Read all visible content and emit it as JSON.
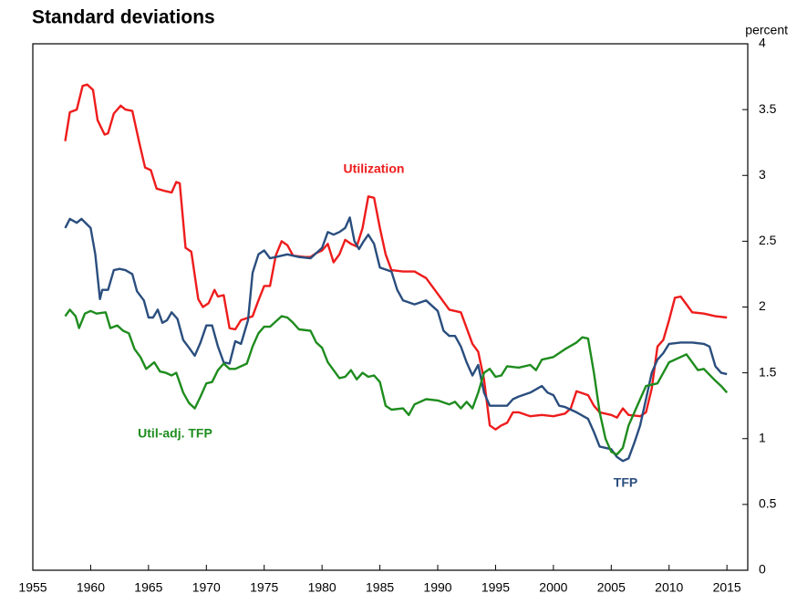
{
  "chart_data": {
    "type": "line",
    "title": "Standard deviations",
    "y_label": "percent",
    "xlim": [
      1955,
      2016.8
    ],
    "xticks": [
      1955,
      1960,
      1965,
      1970,
      1975,
      1980,
      1985,
      1990,
      1995,
      2000,
      2005,
      2010,
      2015
    ],
    "ylim": [
      0,
      4
    ],
    "yticks": [
      0,
      0.5,
      1,
      1.5,
      2,
      2.5,
      3,
      3.5,
      4
    ],
    "y_axis_side": "right",
    "series": [
      {
        "name": "Utilization",
        "color": "#ee1c1c",
        "x": [
          1957.8,
          1958.2,
          1958.8,
          1959.3,
          1959.7,
          1960.2,
          1960.6,
          1961.2,
          1961.5,
          1962,
          1962.6,
          1963,
          1963.6,
          1964.2,
          1964.7,
          1965.2,
          1965.7,
          1966.5,
          1967,
          1967.4,
          1967.7,
          1968.2,
          1968.7,
          1969.3,
          1969.7,
          1970.2,
          1970.7,
          1971,
          1971.5,
          1972,
          1972.5,
          1973,
          1974,
          1974.5,
          1975,
          1975.5,
          1976,
          1976.5,
          1977,
          1977.5,
          1978.5,
          1979,
          1979.5,
          1980,
          1980.5,
          1981,
          1981.5,
          1982,
          1982.5,
          1983,
          1983.5,
          1984,
          1984.5,
          1985,
          1985.5,
          1986,
          1987,
          1988,
          1989,
          1990,
          1991,
          1992,
          1993,
          1993.5,
          1994,
          1994.5,
          1995,
          1995.5,
          1996,
          1996.5,
          1997,
          1998,
          1999,
          2000,
          2001,
          2001.5,
          2002,
          2003,
          2003.5,
          2004,
          2005,
          2005.5,
          2006,
          2006.5,
          2007.5,
          2008,
          2008.5,
          2009,
          2009.5,
          2010,
          2010.5,
          2011,
          2011.5,
          2012,
          2013,
          2014,
          2015
        ],
        "values": [
          3.26,
          3.48,
          3.5,
          3.68,
          3.69,
          3.65,
          3.42,
          3.31,
          3.32,
          3.47,
          3.53,
          3.5,
          3.49,
          3.25,
          3.06,
          3.04,
          2.9,
          2.88,
          2.87,
          2.95,
          2.94,
          2.45,
          2.42,
          2.06,
          2.0,
          2.03,
          2.13,
          2.08,
          2.09,
          1.84,
          1.83,
          1.9,
          1.93,
          2.05,
          2.16,
          2.16,
          2.39,
          2.5,
          2.47,
          2.39,
          2.38,
          2.38,
          2.41,
          2.43,
          2.48,
          2.34,
          2.4,
          2.51,
          2.48,
          2.46,
          2.6,
          2.84,
          2.83,
          2.6,
          2.4,
          2.28,
          2.27,
          2.27,
          2.22,
          2.1,
          1.98,
          1.96,
          1.72,
          1.66,
          1.45,
          1.1,
          1.07,
          1.1,
          1.12,
          1.2,
          1.2,
          1.17,
          1.18,
          1.17,
          1.19,
          1.23,
          1.36,
          1.33,
          1.25,
          1.2,
          1.18,
          1.16,
          1.23,
          1.18,
          1.17,
          1.2,
          1.38,
          1.7,
          1.75,
          1.9,
          2.07,
          2.08,
          2.02,
          1.96,
          1.95,
          1.93,
          1.92
        ]
      },
      {
        "name": "TFP",
        "color": "#2a4e7e",
        "x": [
          1957.8,
          1958.2,
          1958.8,
          1959.2,
          1960,
          1960.4,
          1960.8,
          1961,
          1961.5,
          1962,
          1962.5,
          1963,
          1963.6,
          1964,
          1964.6,
          1965,
          1965.4,
          1965.8,
          1966.2,
          1966.6,
          1967,
          1967.5,
          1968,
          1968.5,
          1969,
          1969.5,
          1970,
          1970.5,
          1971,
          1971.5,
          1972,
          1972.5,
          1973,
          1973.6,
          1974,
          1974.5,
          1975,
          1975.5,
          1976,
          1977,
          1978,
          1979,
          1980,
          1980.5,
          1981,
          1981.5,
          1982,
          1982.4,
          1982.8,
          1983.2,
          1983.6,
          1984,
          1984.5,
          1985,
          1986,
          1986.5,
          1987,
          1988,
          1989,
          1990,
          1990.5,
          1991,
          1991.5,
          1992,
          1992.5,
          1993,
          1993.5,
          1994,
          1994.5,
          1996,
          1996.5,
          1997,
          1998,
          1999,
          1999.5,
          2000,
          2000.5,
          2001,
          2002,
          2003,
          2003.5,
          2004,
          2005,
          2005.5,
          2006,
          2006.5,
          2007,
          2007.5,
          2008,
          2008.5,
          2009,
          2009.5,
          2010,
          2011,
          2012,
          2013,
          2013.5,
          2014,
          2014.5,
          2015
        ],
        "values": [
          2.6,
          2.67,
          2.64,
          2.67,
          2.6,
          2.4,
          2.06,
          2.13,
          2.13,
          2.28,
          2.29,
          2.28,
          2.25,
          2.12,
          2.05,
          1.92,
          1.92,
          1.98,
          1.88,
          1.9,
          1.96,
          1.91,
          1.75,
          1.69,
          1.63,
          1.73,
          1.86,
          1.86,
          1.7,
          1.58,
          1.57,
          1.74,
          1.72,
          1.9,
          2.26,
          2.4,
          2.43,
          2.37,
          2.38,
          2.4,
          2.38,
          2.37,
          2.45,
          2.57,
          2.55,
          2.57,
          2.6,
          2.68,
          2.5,
          2.44,
          2.5,
          2.55,
          2.48,
          2.3,
          2.27,
          2.13,
          2.05,
          2.02,
          2.05,
          1.97,
          1.82,
          1.78,
          1.78,
          1.7,
          1.58,
          1.48,
          1.56,
          1.35,
          1.25,
          1.25,
          1.3,
          1.32,
          1.35,
          1.4,
          1.35,
          1.33,
          1.25,
          1.24,
          1.2,
          1.15,
          1.05,
          0.94,
          0.92,
          0.86,
          0.83,
          0.85,
          0.97,
          1.1,
          1.3,
          1.5,
          1.6,
          1.65,
          1.72,
          1.73,
          1.73,
          1.72,
          1.7,
          1.55,
          1.5,
          1.49
        ]
      },
      {
        "name": "Util-adj. TFP",
        "color": "#1e8c1e",
        "x": [
          1957.8,
          1958.2,
          1958.7,
          1959,
          1959.5,
          1960,
          1960.5,
          1961.3,
          1961.7,
          1962.3,
          1962.8,
          1963.3,
          1963.8,
          1964.3,
          1964.8,
          1965.5,
          1966,
          1966.5,
          1967,
          1967.4,
          1968,
          1968.5,
          1969,
          1969.5,
          1970,
          1970.5,
          1971,
          1971.5,
          1972,
          1972.5,
          1973.5,
          1974,
          1974.5,
          1975,
          1975.5,
          1976,
          1976.5,
          1977,
          1977.5,
          1978,
          1979,
          1979.5,
          1980,
          1980.5,
          1981,
          1981.5,
          1982,
          1982.5,
          1983,
          1983.5,
          1984,
          1984.5,
          1985,
          1985.5,
          1986,
          1987,
          1987.5,
          1988,
          1989,
          1990,
          1991,
          1991.5,
          1992,
          1992.5,
          1993,
          1993.5,
          1994,
          1994.5,
          1995,
          1995.5,
          1996,
          1997,
          1998,
          1998.5,
          1999,
          2000,
          2001,
          2002,
          2002.5,
          2003,
          2003.5,
          2004,
          2004.5,
          2005,
          2005.5,
          2006,
          2006.5,
          2007,
          2007.5,
          2008,
          2009,
          2009.5,
          2010,
          2011,
          2011.5,
          2012,
          2012.5,
          2013,
          2014,
          2014.5,
          2015
        ],
        "values": [
          1.93,
          1.98,
          1.93,
          1.84,
          1.95,
          1.97,
          1.95,
          1.96,
          1.84,
          1.86,
          1.82,
          1.8,
          1.68,
          1.62,
          1.53,
          1.58,
          1.51,
          1.5,
          1.48,
          1.5,
          1.35,
          1.27,
          1.23,
          1.32,
          1.42,
          1.43,
          1.52,
          1.57,
          1.53,
          1.53,
          1.57,
          1.7,
          1.8,
          1.85,
          1.85,
          1.89,
          1.93,
          1.92,
          1.88,
          1.83,
          1.82,
          1.73,
          1.69,
          1.58,
          1.52,
          1.46,
          1.47,
          1.52,
          1.45,
          1.5,
          1.47,
          1.48,
          1.43,
          1.25,
          1.22,
          1.23,
          1.18,
          1.26,
          1.3,
          1.29,
          1.26,
          1.28,
          1.23,
          1.28,
          1.23,
          1.35,
          1.5,
          1.53,
          1.47,
          1.48,
          1.55,
          1.54,
          1.56,
          1.52,
          1.6,
          1.62,
          1.68,
          1.73,
          1.77,
          1.76,
          1.5,
          1.2,
          1.0,
          0.9,
          0.88,
          0.93,
          1.1,
          1.2,
          1.3,
          1.4,
          1.42,
          1.5,
          1.58,
          1.62,
          1.64,
          1.58,
          1.52,
          1.53,
          1.44,
          1.4,
          1.35
        ]
      }
    ]
  }
}
